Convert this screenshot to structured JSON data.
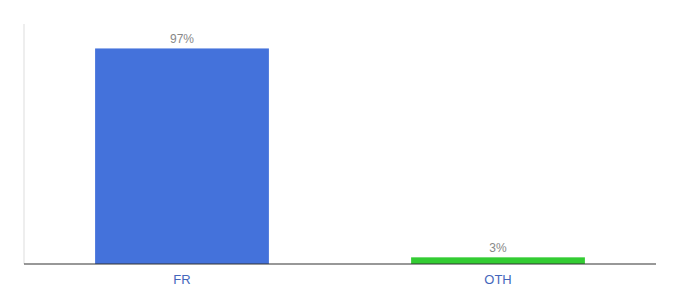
{
  "chart_data": {
    "type": "bar",
    "categories": [
      "FR",
      "OTH"
    ],
    "values": [
      97,
      3
    ],
    "value_labels": [
      "97%",
      "3%"
    ],
    "colors": [
      "#4472db",
      "#33cc33"
    ],
    "data_labels": true,
    "ylim": [
      0,
      108
    ],
    "tick_labels": "x"
  }
}
